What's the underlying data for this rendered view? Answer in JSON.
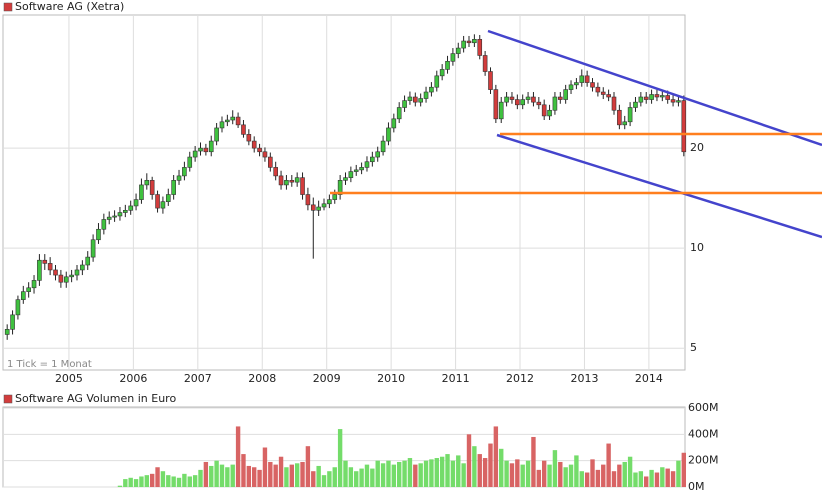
{
  "chart_data": [
    {
      "type": "candlestick",
      "title": "Software AG (Xetra)",
      "note": "1 Tick = 1 Monat",
      "categories": [
        null,
        null,
        null,
        null,
        null,
        null,
        null,
        null,
        null,
        null,
        null,
        null,
        "2005",
        null,
        null,
        null,
        null,
        null,
        null,
        null,
        null,
        null,
        null,
        null,
        "2006",
        null,
        null,
        null,
        null,
        null,
        null,
        null,
        null,
        null,
        null,
        null,
        "2007",
        null,
        null,
        null,
        null,
        null,
        null,
        null,
        null,
        null,
        null,
        null,
        "2008",
        null,
        null,
        null,
        null,
        null,
        null,
        null,
        null,
        null,
        null,
        null,
        "2009",
        null,
        null,
        null,
        null,
        null,
        null,
        null,
        null,
        null,
        null,
        null,
        "2010",
        null,
        null,
        null,
        null,
        null,
        null,
        null,
        null,
        null,
        null,
        null,
        "2011",
        null,
        null,
        null,
        null,
        null,
        null,
        null,
        null,
        null,
        null,
        null,
        "2012",
        null,
        null,
        null,
        null,
        null,
        null,
        null,
        null,
        null,
        null,
        null,
        "2013",
        null,
        null,
        null,
        null,
        null,
        null,
        null,
        null,
        null,
        null,
        null,
        "2014",
        null,
        null,
        null,
        null,
        null,
        null
      ],
      "open": [
        5.5,
        5.7,
        6.3,
        7.0,
        7.4,
        7.6,
        8.0,
        9.2,
        9.0,
        8.6,
        8.3,
        7.9,
        8.2,
        8.3,
        8.6,
        8.9,
        9.4,
        10.6,
        11.4,
        12.2,
        12.4,
        12.5,
        12.8,
        13.0,
        13.4,
        14.0,
        15.5,
        16.0,
        14.5,
        13.2,
        13.8,
        14.5,
        16.0,
        16.5,
        17.5,
        18.8,
        19.6,
        20.0,
        19.5,
        21.0,
        23.0,
        24.0,
        24.3,
        24.8,
        23.5,
        22.0,
        21.0,
        20.0,
        19.5,
        18.8,
        17.5,
        16.5,
        15.5,
        16.0,
        15.8,
        16.3,
        14.5,
        13.5,
        13.0,
        13.3,
        13.6,
        14.0,
        14.5,
        16.0,
        16.3,
        17.0,
        17.2,
        17.5,
        18.2,
        18.8,
        19.5,
        21.0,
        23.0,
        24.5,
        26.5,
        27.8,
        28.5,
        27.5,
        28.2,
        29.5,
        30.5,
        33.0,
        34.5,
        36.5,
        38.5,
        40.0,
        42.0,
        41.5,
        42.5,
        38.0,
        34.0,
        30.0,
        24.5,
        27.5,
        28.5,
        28.0,
        27.0,
        28.0,
        28.5,
        27.5,
        27.0,
        25.0,
        26.0,
        28.5,
        28.0,
        30.0,
        31.0,
        31.5,
        33.0,
        31.5,
        30.5,
        29.5,
        29.0,
        28.5,
        26.0,
        23.5,
        24.0,
        26.5,
        27.5,
        28.5,
        28.0,
        29.0,
        28.5,
        28.8,
        28.0,
        27.5,
        27.8
      ],
      "high": [
        5.9,
        6.5,
        7.2,
        7.7,
        7.9,
        8.3,
        9.6,
        9.6,
        9.4,
        8.9,
        8.6,
        8.5,
        8.6,
        8.9,
        9.2,
        9.8,
        11.0,
        11.9,
        12.7,
        12.9,
        13.0,
        13.3,
        13.5,
        13.9,
        14.6,
        16.2,
        16.8,
        16.4,
        14.9,
        14.3,
        15.1,
        16.6,
        17.2,
        18.2,
        19.5,
        20.3,
        20.8,
        20.6,
        21.8,
        23.8,
        24.9,
        25.2,
        26.0,
        25.6,
        24.3,
        22.8,
        21.7,
        20.6,
        20.1,
        19.4,
        18.2,
        17.1,
        16.6,
        16.6,
        16.9,
        16.9,
        15.2,
        14.2,
        13.9,
        14.1,
        14.5,
        15.0,
        16.6,
        16.9,
        17.6,
        17.8,
        18.1,
        18.9,
        19.5,
        20.2,
        21.8,
        23.9,
        25.4,
        27.5,
        28.8,
        29.6,
        29.4,
        29.2,
        30.6,
        31.6,
        34.2,
        35.8,
        37.9,
        40.0,
        41.5,
        43.5,
        43.5,
        44.0,
        43.8,
        39.2,
        35.0,
        31.0,
        28.5,
        29.5,
        29.5,
        29.0,
        29.0,
        29.5,
        29.5,
        28.5,
        28.0,
        27.0,
        29.5,
        29.5,
        31.0,
        32.0,
        32.5,
        34.5,
        34.2,
        32.5,
        31.5,
        30.5,
        30.0,
        29.5,
        27.0,
        25.0,
        27.5,
        28.5,
        29.5,
        29.5,
        30.0,
        30.0,
        29.8,
        29.8,
        29.0,
        28.8,
        28.8
      ],
      "low": [
        5.3,
        5.5,
        6.1,
        6.8,
        7.1,
        7.3,
        7.7,
        8.6,
        8.3,
        8.0,
        7.6,
        7.6,
        7.9,
        8.0,
        8.3,
        8.6,
        9.1,
        10.3,
        11.0,
        11.8,
        12.0,
        12.1,
        12.4,
        12.6,
        13.0,
        13.6,
        15.0,
        14.0,
        12.8,
        12.7,
        13.4,
        14.0,
        15.5,
        16.0,
        17.0,
        18.2,
        19.0,
        19.0,
        18.9,
        20.4,
        22.3,
        23.3,
        23.6,
        23.0,
        21.5,
        20.4,
        19.4,
        18.9,
        18.2,
        17.0,
        16.0,
        15.0,
        15.0,
        15.3,
        15.3,
        14.0,
        13.0,
        9.3,
        12.5,
        13.0,
        13.2,
        13.6,
        14.0,
        15.5,
        15.8,
        16.5,
        16.7,
        17.0,
        17.6,
        18.2,
        19.0,
        20.4,
        22.3,
        23.8,
        25.7,
        27.0,
        26.7,
        26.7,
        27.4,
        28.6,
        29.6,
        32.0,
        33.5,
        35.4,
        37.3,
        38.8,
        40.3,
        40.3,
        37.0,
        33.0,
        29.1,
        23.8,
        23.8,
        26.7,
        27.2,
        26.2,
        26.2,
        27.2,
        26.7,
        26.2,
        24.3,
        24.3,
        25.2,
        27.2,
        27.2,
        29.1,
        30.1,
        30.6,
        30.6,
        29.6,
        28.6,
        28.1,
        27.7,
        25.2,
        22.8,
        22.8,
        23.3,
        25.7,
        26.7,
        27.2,
        27.2,
        27.7,
        27.7,
        27.2,
        26.7,
        26.7,
        18.9
      ],
      "close": [
        5.7,
        6.3,
        7.0,
        7.4,
        7.6,
        8.0,
        9.2,
        9.0,
        8.6,
        8.3,
        7.9,
        8.2,
        8.3,
        8.6,
        8.9,
        9.4,
        10.6,
        11.4,
        12.2,
        12.4,
        12.5,
        12.8,
        13.0,
        13.4,
        14.0,
        15.5,
        16.0,
        14.5,
        13.2,
        13.8,
        14.5,
        16.0,
        16.5,
        17.5,
        18.8,
        19.6,
        20.0,
        19.5,
        21.0,
        23.0,
        24.0,
        24.3,
        24.8,
        23.5,
        22.0,
        21.0,
        20.0,
        19.5,
        18.8,
        17.5,
        16.5,
        15.5,
        16.0,
        15.8,
        16.3,
        14.5,
        13.5,
        13.0,
        13.3,
        13.6,
        14.0,
        14.5,
        16.0,
        16.3,
        17.0,
        17.2,
        17.5,
        18.2,
        18.8,
        19.5,
        21.0,
        23.0,
        24.5,
        26.5,
        27.8,
        28.5,
        27.5,
        28.2,
        29.5,
        30.5,
        33.0,
        34.5,
        36.5,
        38.5,
        40.0,
        42.0,
        41.5,
        42.5,
        38.0,
        34.0,
        30.0,
        24.5,
        27.5,
        28.5,
        28.0,
        27.0,
        28.0,
        28.5,
        27.5,
        27.0,
        25.0,
        26.0,
        28.5,
        28.0,
        30.0,
        31.0,
        31.5,
        33.0,
        31.5,
        30.5,
        29.5,
        29.0,
        28.5,
        26.0,
        23.5,
        24.0,
        26.5,
        27.5,
        28.5,
        28.0,
        29.0,
        28.5,
        28.8,
        28.0,
        27.5,
        27.8,
        19.5
      ],
      "ylim": [
        4.3,
        50.3
      ],
      "yticks": [
        5,
        10,
        20
      ],
      "log_scale": true,
      "grid": true,
      "up_color": "#3fc13f",
      "down_color": "#d23c3c",
      "color": "#d23c3c"
    },
    {
      "type": "bar",
      "title": "Software AG Volumen in Euro",
      "color": "#d23c3c",
      "values": [
        null,
        null,
        null,
        null,
        null,
        null,
        null,
        null,
        null,
        null,
        null,
        null,
        null,
        null,
        null,
        null,
        null,
        null,
        null,
        null,
        null,
        10,
        60,
        70,
        60,
        80,
        90,
        100,
        150,
        120,
        90,
        80,
        70,
        100,
        80,
        90,
        130,
        190,
        160,
        200,
        170,
        150,
        170,
        460,
        250,
        160,
        150,
        130,
        300,
        190,
        170,
        230,
        150,
        170,
        180,
        190,
        310,
        120,
        160,
        90,
        120,
        150,
        440,
        200,
        150,
        120,
        140,
        170,
        140,
        200,
        180,
        200,
        170,
        190,
        200,
        220,
        170,
        180,
        200,
        210,
        220,
        230,
        250,
        200,
        240,
        180,
        400,
        310,
        250,
        220,
        330,
        460,
        290,
        200,
        180,
        210,
        170,
        200,
        380,
        130,
        200,
        170,
        280,
        190,
        150,
        170,
        240,
        120,
        110,
        210,
        130,
        170,
        330,
        120,
        170,
        190,
        230,
        110,
        120,
        80,
        130,
        110,
        150,
        140,
        120,
        200,
        260
      ],
      "ylim": [
        0,
        600
      ],
      "yticks": [
        {
          "value": 0,
          "label": "0M"
        },
        {
          "value": 200,
          "label": "200M"
        },
        {
          "value": 400,
          "label": "400M"
        },
        {
          "value": 600,
          "label": "600M"
        }
      ],
      "grid": true,
      "up_color": "#74dc6a",
      "down_color": "#d86464"
    }
  ]
}
